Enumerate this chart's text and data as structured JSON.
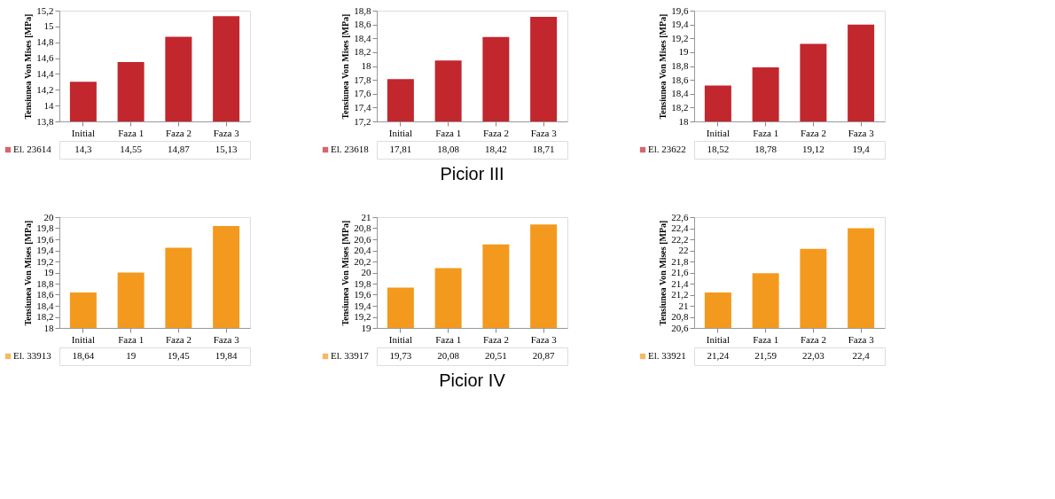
{
  "chart_data": [
    {
      "type": "bar",
      "ylabel": "Tensiunea Von Mises [MPa]",
      "categories": [
        "Initial",
        "Faza 1",
        "Faza 2",
        "Faza 3"
      ],
      "legend": "bottom",
      "grid": false,
      "series": [
        {
          "name": "El. 23614",
          "color": "#c1272d",
          "values": [
            14.3,
            14.55,
            14.87,
            15.13
          ],
          "value_labels": [
            "14,3",
            "14,55",
            "14,87",
            "15,13"
          ]
        }
      ],
      "ylim": [
        13.8,
        15.2
      ],
      "yticks": [
        {
          "value": 13.8,
          "label": "13,8"
        },
        14,
        {
          "value": 14.2,
          "label": "14,2"
        },
        {
          "value": 14.4,
          "label": "14,4"
        },
        {
          "value": 14.6,
          "label": "14,6"
        },
        {
          "value": 14.8,
          "label": "14,8"
        },
        15,
        {
          "value": 15.2,
          "label": "15,2"
        }
      ]
    },
    {
      "type": "bar",
      "ylabel": "Tensiunea Von Mises [MPa]",
      "categories": [
        "Initial",
        "Faza 1",
        "Faza 2",
        "Faza 3"
      ],
      "legend": "bottom",
      "grid": false,
      "annotations": [
        "Picior III"
      ],
      "series": [
        {
          "name": "El. 23618",
          "color": "#c1272d",
          "values": [
            17.81,
            18.08,
            18.42,
            18.71
          ],
          "value_labels": [
            "17,81",
            "18,08",
            "18,42",
            "18,71"
          ]
        }
      ],
      "ylim": [
        17.2,
        18.8
      ],
      "yticks": [
        {
          "value": 17.2,
          "label": "17,2"
        },
        {
          "value": 17.4,
          "label": "17,4"
        },
        {
          "value": 17.6,
          "label": "17,6"
        },
        {
          "value": 17.8,
          "label": "17,8"
        },
        18,
        {
          "value": 18.2,
          "label": "18,2"
        },
        {
          "value": 18.4,
          "label": "18,4"
        },
        {
          "value": 18.6,
          "label": "18,6"
        },
        {
          "value": 18.8,
          "label": "18,8"
        }
      ]
    },
    {
      "type": "bar",
      "ylabel": "Tensiunea Von Mises [MPa]",
      "categories": [
        "Initial",
        "Faza 1",
        "Faza 2",
        "Faza 3"
      ],
      "legend": "bottom",
      "grid": false,
      "series": [
        {
          "name": "El. 23622",
          "color": "#c1272d",
          "values": [
            18.52,
            18.78,
            19.12,
            19.4
          ],
          "value_labels": [
            "18,52",
            "18,78",
            "19,12",
            "19,4"
          ]
        }
      ],
      "ylim": [
        18,
        19.6
      ],
      "yticks": [
        18,
        {
          "value": 18.2,
          "label": "18,2"
        },
        {
          "value": 18.4,
          "label": "18,4"
        },
        {
          "value": 18.6,
          "label": "18,6"
        },
        {
          "value": 18.8,
          "label": "18,8"
        },
        19,
        {
          "value": 19.2,
          "label": "19,2"
        },
        {
          "value": 19.4,
          "label": "19,4"
        },
        {
          "value": 19.6,
          "label": "19,6"
        }
      ]
    },
    {
      "type": "bar",
      "ylabel": "Tensiunea Von Mises [MPa]",
      "categories": [
        "Initial",
        "Faza 1",
        "Faza 2",
        "Faza 3"
      ],
      "legend": "bottom",
      "grid": false,
      "series": [
        {
          "name": "El. 33913",
          "color": "#f39a1e",
          "values": [
            18.64,
            19,
            19.45,
            19.84
          ],
          "value_labels": [
            "18,64",
            "19",
            "19,45",
            "19,84"
          ]
        }
      ],
      "ylim": [
        18,
        20
      ],
      "yticks": [
        18,
        {
          "value": 18.2,
          "label": "18,2"
        },
        {
          "value": 18.4,
          "label": "18,4"
        },
        {
          "value": 18.6,
          "label": "18,6"
        },
        {
          "value": 18.8,
          "label": "18,8"
        },
        19,
        {
          "value": 19.2,
          "label": "19,2"
        },
        {
          "value": 19.4,
          "label": "19,4"
        },
        {
          "value": 19.6,
          "label": "19,6"
        },
        {
          "value": 19.8,
          "label": "19,8"
        },
        20
      ]
    },
    {
      "type": "bar",
      "ylabel": "Tensiunea Von Mises [MPa]",
      "categories": [
        "Initial",
        "Faza 1",
        "Faza 2",
        "Faza 3"
      ],
      "legend": "bottom",
      "grid": false,
      "annotations": [
        "Picior IV"
      ],
      "series": [
        {
          "name": "El. 33917",
          "color": "#f39a1e",
          "values": [
            19.73,
            20.08,
            20.51,
            20.87
          ],
          "value_labels": [
            "19,73",
            "20,08",
            "20,51",
            "20,87"
          ]
        }
      ],
      "ylim": [
        19,
        21
      ],
      "yticks": [
        19,
        {
          "value": 19.2,
          "label": "19,2"
        },
        {
          "value": 19.4,
          "label": "19,4"
        },
        {
          "value": 19.6,
          "label": "19,6"
        },
        {
          "value": 19.8,
          "label": "19,8"
        },
        20,
        {
          "value": 20.2,
          "label": "20,2"
        },
        {
          "value": 20.4,
          "label": "20,4"
        },
        {
          "value": 20.6,
          "label": "20,6"
        },
        {
          "value": 20.8,
          "label": "20,8"
        },
        21
      ]
    },
    {
      "type": "bar",
      "ylabel": "Tensiunea Von Mises [MPa]",
      "categories": [
        "Initial",
        "Faza 1",
        "Faza 2",
        "Faza 3"
      ],
      "legend": "bottom",
      "grid": false,
      "series": [
        {
          "name": "El. 33921",
          "color": "#f39a1e",
          "values": [
            21.24,
            21.59,
            22.03,
            22.4
          ],
          "value_labels": [
            "21,24",
            "21,59",
            "22,03",
            "22,4"
          ]
        }
      ],
      "ylim": [
        20.6,
        22.6
      ],
      "yticks": [
        {
          "value": 20.6,
          "label": "20,6"
        },
        {
          "value": 20.8,
          "label": "20,8"
        },
        21,
        {
          "value": 21.2,
          "label": "21,2"
        },
        {
          "value": 21.4,
          "label": "21,4"
        },
        {
          "value": 21.6,
          "label": "21,6"
        },
        {
          "value": 21.8,
          "label": "21,8"
        },
        22,
        {
          "value": 22.2,
          "label": "22,2"
        },
        {
          "value": 22.4,
          "label": "22,4"
        },
        {
          "value": 22.6,
          "label": "22,6"
        }
      ]
    }
  ]
}
